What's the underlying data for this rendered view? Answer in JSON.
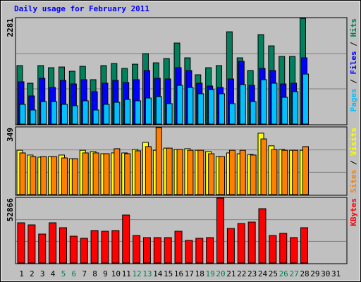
{
  "legend_separator": " / ",
  "chart_data": [
    {
      "type": "bar",
      "title": "Daily usage for February 2011",
      "ylim": [
        0,
        2281
      ],
      "yticks": [
        2281
      ],
      "series": [
        {
          "name": "Hits",
          "color": "#00805c",
          "values": [
            1262,
            882,
            1262,
            1216,
            1231,
            1140,
            1246,
            958,
            1262,
            1307,
            1201,
            1292,
            1520,
            1322,
            1414,
            1748,
            1429,
            1064,
            1216,
            1262,
            1991,
            1429,
            1155,
            1930,
            1687,
            1459,
            1459,
            2281,
            null,
            null,
            null
          ]
        },
        {
          "name": "Files",
          "color": "#0000ff",
          "values": [
            912,
            608,
            988,
            790,
            942,
            866,
            958,
            699,
            882,
            942,
            897,
            958,
            1155,
            988,
            973,
            1216,
            1155,
            882,
            821,
            790,
            973,
            1353,
            836,
            1201,
            1155,
            866,
            882,
            1429,
            null,
            null,
            null
          ]
        },
        {
          "name": "Pages",
          "color": "#00c0ff",
          "values": [
            426,
            304,
            486,
            486,
            426,
            395,
            502,
            304,
            426,
            471,
            532,
            502,
            562,
            593,
            441,
            836,
            790,
            654,
            745,
            654,
            441,
            851,
            486,
            958,
            882,
            578,
            699,
            1079,
            null,
            null,
            null
          ]
        }
      ]
    },
    {
      "type": "bar",
      "ylim": [
        0,
        349
      ],
      "yticks": [
        349
      ],
      "series": [
        {
          "name": "Visits",
          "color": "#ffff00",
          "values": [
            231,
            206,
            195,
            198,
            206,
            187,
            231,
            224,
            213,
            217,
            217,
            235,
            272,
            231,
            242,
            235,
            239,
            231,
            224,
            198,
            217,
            213,
            209,
            320,
            254,
            235,
            231,
            231,
            null,
            null,
            null
          ]
        },
        {
          "name": "Sites",
          "color": "#ff8000",
          "values": [
            217,
            198,
            198,
            198,
            191,
            187,
            217,
            217,
            213,
            239,
            213,
            228,
            250,
            349,
            242,
            235,
            231,
            231,
            213,
            198,
            231,
            231,
            206,
            290,
            235,
            231,
            231,
            250,
            null,
            null,
            null
          ]
        }
      ]
    },
    {
      "type": "bar",
      "ylim": [
        0,
        52866
      ],
      "yticks": [
        52866
      ],
      "categories": [
        "1",
        "2",
        "3",
        "4",
        "5",
        "6",
        "7",
        "8",
        "9",
        "10",
        "11",
        "12",
        "13",
        "14",
        "15",
        "16",
        "17",
        "18",
        "19",
        "20",
        "21",
        "22",
        "23",
        "24",
        "25",
        "26",
        "27",
        "28",
        "29",
        "30",
        "31"
      ],
      "category_colors": [
        "#000",
        "#000",
        "#000",
        "#000",
        "#00805c",
        "#00805c",
        "#000",
        "#000",
        "#000",
        "#000",
        "#000",
        "#00805c",
        "#00805c",
        "#000",
        "#000",
        "#000",
        "#000",
        "#000",
        "#00805c",
        "#00805c",
        "#000",
        "#000",
        "#000",
        "#000",
        "#000",
        "#00805c",
        "#00805c",
        "#000",
        "#000",
        "#000",
        "#000"
      ],
      "series": [
        {
          "name": "KBytes",
          "color": "#ff0000",
          "values": [
            32752,
            31029,
            23559,
            32752,
            28731,
            21836,
            20112,
            26433,
            25858,
            26433,
            39074,
            22410,
            20686,
            20686,
            20686,
            25858,
            18388,
            20112,
            20686,
            52866,
            28157,
            32178,
            33328,
            44246,
            22410,
            24134,
            20686,
            28731,
            null,
            null,
            null
          ]
        }
      ]
    }
  ]
}
